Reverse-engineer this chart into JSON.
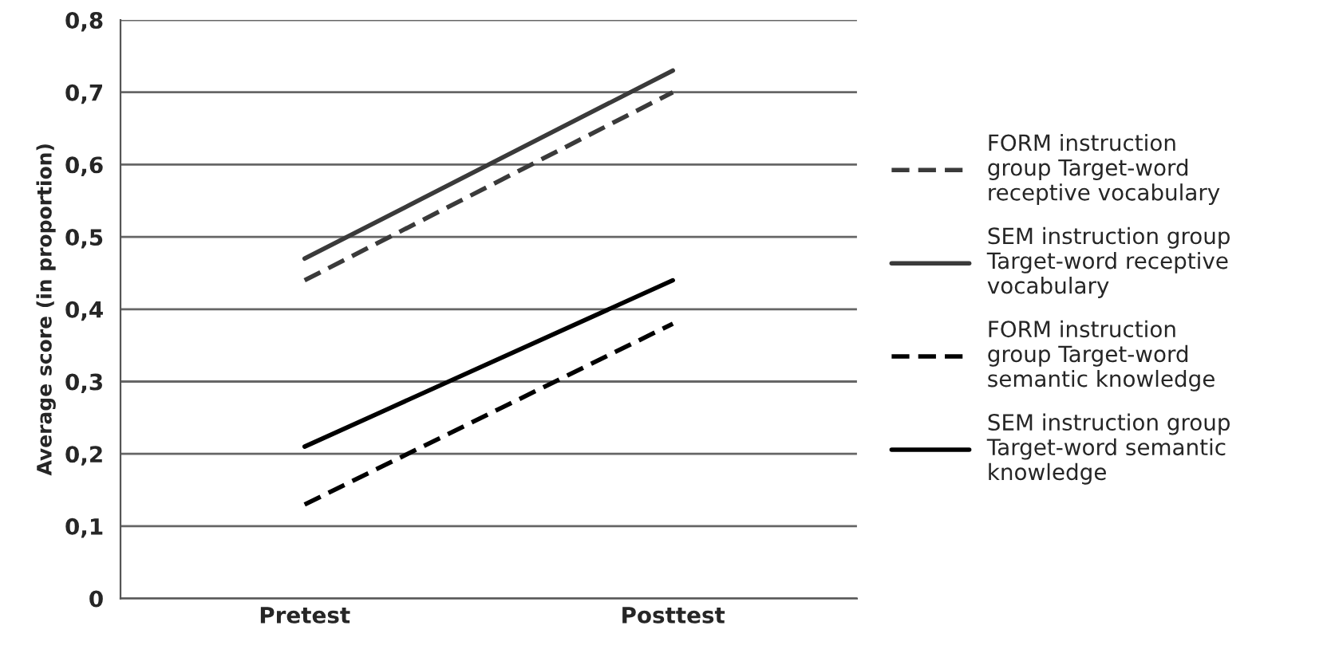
{
  "chart_data": {
    "type": "line",
    "ylabel": "Average score (in proportion)",
    "categories": [
      "Pretest",
      "Posttest"
    ],
    "series": [
      {
        "name": "FORM instruction\ngroup Target-word\nreceptive vocabulary",
        "color": "#3a3a3a",
        "line_style": "dashed",
        "values": [
          0.44,
          0.7
        ]
      },
      {
        "name": "SEM instruction group\nTarget-word receptive\nvocabulary",
        "color": "#3a3a3a",
        "line_style": "solid",
        "values": [
          0.47,
          0.73
        ]
      },
      {
        "name": "FORM instruction\ngroup Target-word\nsemantic knowledge",
        "color": "#000000",
        "line_style": "dashed",
        "values": [
          0.13,
          0.38
        ]
      },
      {
        "name": "SEM instruction group\nTarget-word semantic\nknowledge",
        "color": "#000000",
        "line_style": "solid",
        "values": [
          0.21,
          0.44
        ]
      }
    ],
    "ylim": [
      0,
      0.8
    ],
    "yticks": [
      {
        "value": 0,
        "label": "0"
      },
      {
        "value": 0.1,
        "label": "0,1"
      },
      {
        "value": 0.2,
        "label": "0,2"
      },
      {
        "value": 0.3,
        "label": "0,3"
      },
      {
        "value": 0.4,
        "label": "0,4"
      },
      {
        "value": 0.5,
        "label": "0,5"
      },
      {
        "value": 0.6,
        "label": "0,6"
      },
      {
        "value": 0.7,
        "label": "0,7"
      },
      {
        "value": 0.8,
        "label": "0,8"
      }
    ],
    "grid": "y",
    "legend": "right",
    "marker": "none"
  }
}
